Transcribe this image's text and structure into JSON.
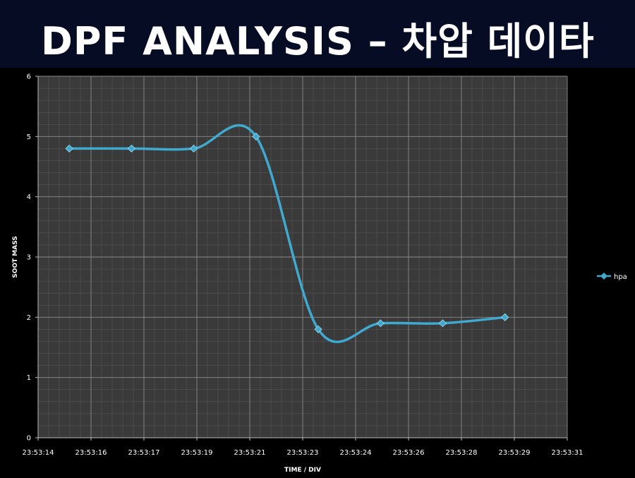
{
  "title": "DPF ANALYSIS  –  차압 데이타",
  "chart_data": {
    "type": "line",
    "xlabel": "TIME / DIV",
    "ylabel": "SOOT MASS",
    "ylim": [
      0,
      6
    ],
    "y_ticks": [
      "0",
      "1",
      "2",
      "3",
      "4",
      "5",
      "6"
    ],
    "x_ticks": [
      "23:53:14",
      "23:53:16",
      "23:53:17",
      "23:53:19",
      "23:53:21",
      "23:53:23",
      "23:53:24",
      "23:53:26",
      "23:53:28",
      "23:53:29",
      "23:53:31"
    ],
    "x_range_seconds_from_first_tick": [
      0,
      17
    ],
    "smoothed": true,
    "grid": true,
    "legend": "right",
    "series": [
      {
        "name": "hpa",
        "color": "#3fa9cf",
        "x": [
          "23:53:15",
          "23:53:17",
          "23:53:19",
          "23:53:21",
          "23:53:23",
          "23:53:25",
          "23:53:27",
          "23:53:29"
        ],
        "values": [
          4.8,
          4.8,
          4.8,
          5.0,
          1.8,
          1.9,
          1.9,
          2.0
        ]
      }
    ]
  }
}
